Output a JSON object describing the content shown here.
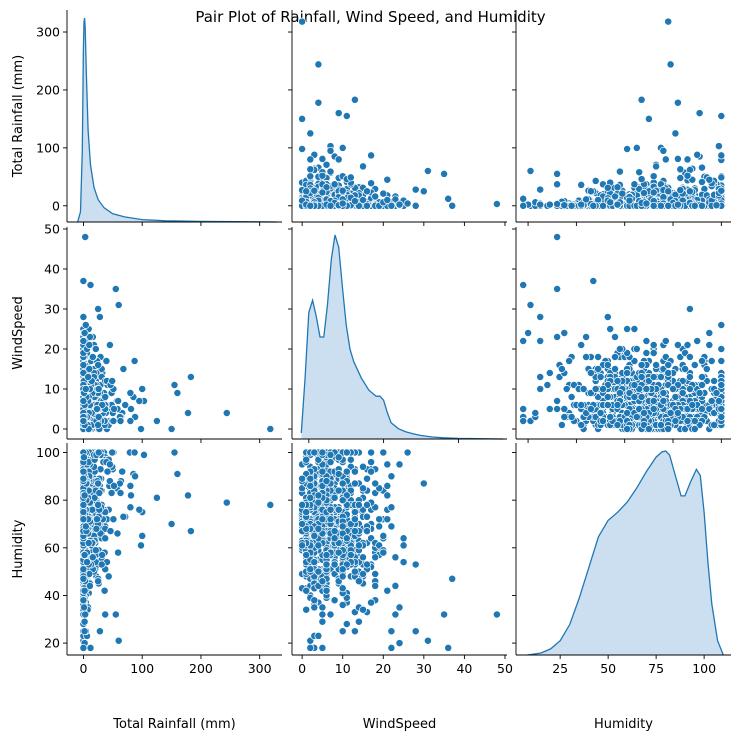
{
  "chart_data": {
    "type": "scatter",
    "title": "Pair Plot of Rainfall, Wind Speed, and Humidity",
    "color": "#1f77b4",
    "kde_fill": "#c6dbef",
    "variables": [
      {
        "key": "rain",
        "label": "Total Rainfall (mm)",
        "lim": [
          -28,
          338
        ],
        "ticks": [
          0,
          100,
          200,
          300
        ]
      },
      {
        "key": "wind",
        "label": "WindSpeed",
        "lim": [
          -2.5,
          50.5
        ],
        "ticks": [
          0,
          10,
          20,
          30,
          40,
          50
        ]
      },
      {
        "key": "hum",
        "label": "Humidity",
        "lim": [
          15,
          104
        ],
        "ticks": [
          20,
          40,
          60,
          80,
          100
        ]
      }
    ],
    "diag_x_ticks": {
      "rain": [
        0,
        100,
        200,
        300
      ],
      "wind": [
        0,
        20,
        40
      ],
      "hum": [
        25,
        50,
        75,
        100
      ]
    },
    "diag_x_lim": {
      "rain": [
        -28,
        338
      ],
      "wind": [
        -4.5,
        53
      ],
      "hum": [
        2,
        114
      ]
    },
    "kde": {
      "rain": {
        "x": [
          -10,
          -5,
          -2,
          0,
          1,
          2,
          3,
          5,
          8,
          12,
          18,
          25,
          35,
          50,
          70,
          100,
          140,
          200,
          260,
          330
        ],
        "d": [
          0,
          0.05,
          0.35,
          0.85,
          0.98,
          1.0,
          0.95,
          0.72,
          0.45,
          0.28,
          0.17,
          0.11,
          0.07,
          0.04,
          0.025,
          0.012,
          0.006,
          0.003,
          0.0015,
          0
        ]
      },
      "wind": {
        "x": [
          -2,
          -1,
          0,
          1,
          2,
          3,
          4,
          5,
          6,
          7,
          8,
          9,
          10,
          11,
          12,
          14,
          16,
          18,
          19,
          20,
          21,
          22,
          24,
          26,
          28,
          30,
          33,
          36,
          40,
          45,
          52
        ],
        "d": [
          0.03,
          0.3,
          0.62,
          0.68,
          0.6,
          0.5,
          0.5,
          0.66,
          0.88,
          1.0,
          0.94,
          0.74,
          0.56,
          0.44,
          0.38,
          0.3,
          0.24,
          0.21,
          0.21,
          0.19,
          0.13,
          0.08,
          0.05,
          0.035,
          0.025,
          0.017,
          0.01,
          0.006,
          0.003,
          0.0015,
          0
        ]
      },
      "hum": {
        "x": [
          8,
          15,
          20,
          25,
          30,
          35,
          40,
          45,
          50,
          55,
          60,
          65,
          70,
          75,
          78,
          80,
          82,
          85,
          88,
          90,
          93,
          96,
          98,
          100,
          102,
          104,
          107,
          110
        ],
        "d": [
          0,
          0.01,
          0.03,
          0.07,
          0.15,
          0.28,
          0.43,
          0.58,
          0.66,
          0.7,
          0.75,
          0.82,
          0.9,
          0.97,
          0.995,
          1.0,
          0.98,
          0.88,
          0.78,
          0.78,
          0.85,
          0.91,
          0.88,
          0.7,
          0.45,
          0.25,
          0.07,
          0
        ]
      }
    },
    "grid": false,
    "legend": "none"
  }
}
